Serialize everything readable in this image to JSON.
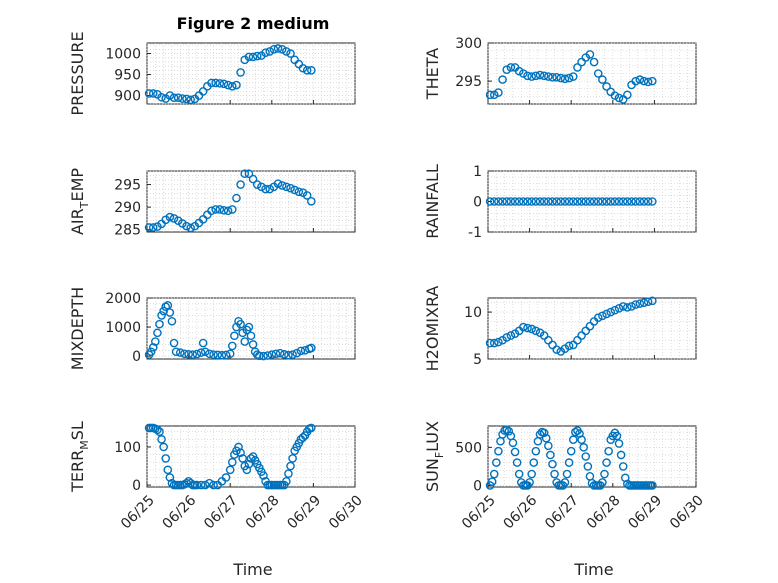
{
  "figure": {
    "title": "Figure 2 medium",
    "marker_color": "#0072BD",
    "x_tick_labels": [
      "06/25",
      "06/26",
      "06/27",
      "06/28",
      "06/29",
      "06/30"
    ],
    "x_label": "Time"
  },
  "chart_data": [
    {
      "type": "scatter",
      "ylabel": "PRESSURE",
      "ylim": [
        880,
        1025
      ],
      "yticks": [
        900,
        950,
        1000
      ],
      "xlim": [
        0,
        5
      ],
      "grid": true,
      "x": [
        0.05,
        0.15,
        0.25,
        0.35,
        0.45,
        0.55,
        0.65,
        0.75,
        0.85,
        0.95,
        1.05,
        1.15,
        1.25,
        1.35,
        1.45,
        1.55,
        1.65,
        1.75,
        1.85,
        1.95,
        2.05,
        2.15,
        2.25,
        2.35,
        2.45,
        2.55,
        2.65,
        2.75,
        2.85,
        2.95,
        3.05,
        3.15,
        3.25,
        3.35,
        3.45,
        3.55,
        3.65,
        3.75,
        3.85,
        3.95
      ],
      "y": [
        905,
        905,
        903,
        896,
        893,
        900,
        895,
        895,
        893,
        892,
        890,
        892,
        900,
        910,
        922,
        930,
        930,
        929,
        928,
        925,
        922,
        925,
        955,
        985,
        992,
        992,
        994,
        995,
        1002,
        1005,
        1010,
        1012,
        1010,
        1005,
        1000,
        985,
        975,
        965,
        960,
        960
      ]
    },
    {
      "type": "scatter",
      "ylabel": "THETA",
      "ylim": [
        292,
        300
      ],
      "yticks": [
        295,
        300
      ],
      "xlim": [
        0,
        5
      ],
      "grid": true,
      "x": [
        0.05,
        0.15,
        0.25,
        0.35,
        0.45,
        0.55,
        0.65,
        0.75,
        0.85,
        0.95,
        1.05,
        1.15,
        1.25,
        1.35,
        1.45,
        1.55,
        1.65,
        1.75,
        1.85,
        1.95,
        2.05,
        2.15,
        2.25,
        2.35,
        2.45,
        2.55,
        2.65,
        2.75,
        2.85,
        2.95,
        3.05,
        3.15,
        3.25,
        3.35,
        3.45,
        3.55,
        3.65,
        3.75,
        3.85,
        3.95
      ],
      "y": [
        293.2,
        293.2,
        293.5,
        295.2,
        296.5,
        296.8,
        296.8,
        296.3,
        296,
        295.7,
        295.6,
        295.7,
        295.8,
        295.7,
        295.6,
        295.5,
        295.5,
        295.4,
        295.3,
        295.4,
        295.6,
        296.8,
        297.5,
        298.1,
        298.5,
        297.5,
        296,
        295.2,
        294.3,
        293.6,
        293.1,
        292.8,
        292.6,
        293.2,
        294.5,
        295,
        295.2,
        295,
        294.9,
        295
      ]
    },
    {
      "type": "scatter",
      "ylabel": "AIR_TEMP",
      "ylim": [
        284.5,
        298
      ],
      "yticks": [
        285,
        290,
        295
      ],
      "xlim": [
        0,
        5
      ],
      "grid": true,
      "x": [
        0.05,
        0.15,
        0.25,
        0.35,
        0.45,
        0.55,
        0.65,
        0.75,
        0.85,
        0.95,
        1.05,
        1.15,
        1.25,
        1.35,
        1.45,
        1.55,
        1.65,
        1.75,
        1.85,
        1.95,
        2.05,
        2.15,
        2.25,
        2.35,
        2.45,
        2.55,
        2.65,
        2.75,
        2.85,
        2.95,
        3.05,
        3.15,
        3.25,
        3.35,
        3.45,
        3.55,
        3.65,
        3.75,
        3.85,
        3.95
      ],
      "y": [
        285.5,
        285.5,
        285.7,
        286.3,
        287.2,
        287.8,
        287.5,
        287,
        286.4,
        285.8,
        285.4,
        285.8,
        286.5,
        287.3,
        288.3,
        289.2,
        289.5,
        289.5,
        289.3,
        289.2,
        289.5,
        292,
        295,
        297.4,
        297.4,
        296.2,
        295,
        294.5,
        294,
        294,
        294.5,
        295.2,
        294.8,
        294.5,
        294.2,
        293.8,
        293.4,
        293.2,
        292.6,
        291.3
      ]
    },
    {
      "type": "scatter",
      "ylabel": "RAINFALL",
      "ylim": [
        -1,
        1
      ],
      "yticks": [
        -1,
        0,
        1
      ],
      "xlim": [
        0,
        5
      ],
      "grid": true,
      "x": [
        0.05,
        0.15,
        0.25,
        0.35,
        0.45,
        0.55,
        0.65,
        0.75,
        0.85,
        0.95,
        1.05,
        1.15,
        1.25,
        1.35,
        1.45,
        1.55,
        1.65,
        1.75,
        1.85,
        1.95,
        2.05,
        2.15,
        2.25,
        2.35,
        2.45,
        2.55,
        2.65,
        2.75,
        2.85,
        2.95,
        3.05,
        3.15,
        3.25,
        3.35,
        3.45,
        3.55,
        3.65,
        3.75,
        3.85,
        3.95
      ],
      "y": [
        0,
        0,
        0,
        0,
        0,
        0,
        0,
        0,
        0,
        0,
        0,
        0,
        0,
        0,
        0,
        0,
        0,
        0,
        0,
        0,
        0,
        0,
        0,
        0,
        0,
        0,
        0,
        0,
        0,
        0,
        0,
        0,
        0,
        0,
        0,
        0,
        0,
        0,
        0,
        0
      ]
    },
    {
      "type": "scatter",
      "ylabel": "MIXDEPTH",
      "ylim": [
        -100,
        2000
      ],
      "yticks": [
        0,
        1000,
        2000
      ],
      "xlim": [
        0,
        5
      ],
      "grid": true,
      "x": [
        0.05,
        0.1,
        0.15,
        0.2,
        0.25,
        0.3,
        0.35,
        0.4,
        0.45,
        0.5,
        0.55,
        0.6,
        0.65,
        0.7,
        0.8,
        0.9,
        1.0,
        1.1,
        1.2,
        1.3,
        1.35,
        1.4,
        1.5,
        1.6,
        1.7,
        1.8,
        1.9,
        2.0,
        2.05,
        2.1,
        2.15,
        2.2,
        2.25,
        2.3,
        2.35,
        2.4,
        2.45,
        2.5,
        2.55,
        2.6,
        2.65,
        2.7,
        2.8,
        2.9,
        3.0,
        3.1,
        3.2,
        3.3,
        3.4,
        3.5,
        3.6,
        3.7,
        3.8,
        3.9,
        3.95
      ],
      "y": [
        50,
        150,
        300,
        500,
        800,
        1100,
        1400,
        1550,
        1700,
        1750,
        1500,
        1200,
        450,
        150,
        120,
        80,
        60,
        50,
        70,
        120,
        450,
        150,
        80,
        50,
        40,
        30,
        40,
        80,
        350,
        700,
        1000,
        1200,
        1100,
        800,
        500,
        900,
        1000,
        700,
        400,
        150,
        50,
        10,
        0,
        20,
        50,
        80,
        100,
        60,
        30,
        50,
        100,
        180,
        200,
        250,
        280
      ]
    },
    {
      "type": "scatter",
      "ylabel": "H2OMIXRA",
      "ylim": [
        5,
        11.5
      ],
      "yticks": [
        5,
        10
      ],
      "xlim": [
        0,
        5
      ],
      "grid": true,
      "x": [
        0.05,
        0.15,
        0.25,
        0.35,
        0.45,
        0.55,
        0.65,
        0.75,
        0.85,
        0.95,
        1.05,
        1.15,
        1.25,
        1.35,
        1.45,
        1.55,
        1.65,
        1.75,
        1.85,
        1.95,
        2.05,
        2.15,
        2.25,
        2.35,
        2.45,
        2.55,
        2.65,
        2.75,
        2.85,
        2.95,
        3.05,
        3.15,
        3.25,
        3.35,
        3.45,
        3.55,
        3.65,
        3.75,
        3.85,
        3.95
      ],
      "y": [
        6.7,
        6.7,
        6.8,
        7.0,
        7.3,
        7.5,
        7.7,
        8.0,
        8.4,
        8.3,
        8.2,
        8.0,
        7.8,
        7.5,
        7.0,
        6.5,
        6.0,
        5.8,
        6.1,
        6.4,
        6.5,
        7.0,
        7.5,
        8.0,
        8.5,
        9.0,
        9.4,
        9.6,
        9.8,
        10.0,
        10.2,
        10.4,
        10.6,
        10.5,
        10.6,
        10.8,
        10.9,
        11.0,
        11.1,
        11.2
      ]
    },
    {
      "type": "scatter",
      "ylabel": "TERR_MSL",
      "ylim": [
        -5,
        155
      ],
      "yticks": [
        0,
        100
      ],
      "xlim": [
        0,
        5
      ],
      "grid": true,
      "x": [
        0.05,
        0.1,
        0.15,
        0.2,
        0.25,
        0.3,
        0.35,
        0.4,
        0.45,
        0.5,
        0.55,
        0.6,
        0.65,
        0.7,
        0.75,
        0.8,
        0.85,
        0.9,
        0.95,
        1.0,
        1.05,
        1.1,
        1.15,
        1.2,
        1.3,
        1.4,
        1.5,
        1.6,
        1.7,
        1.8,
        1.9,
        2.0,
        2.05,
        2.1,
        2.15,
        2.2,
        2.25,
        2.3,
        2.35,
        2.4,
        2.45,
        2.5,
        2.55,
        2.6,
        2.65,
        2.7,
        2.75,
        2.8,
        2.85,
        2.9,
        2.95,
        3.0,
        3.05,
        3.1,
        3.15,
        3.2,
        3.25,
        3.3,
        3.35,
        3.4,
        3.45,
        3.5,
        3.55,
        3.6,
        3.65,
        3.7,
        3.75,
        3.8,
        3.85,
        3.9,
        3.95
      ],
      "y": [
        150,
        150,
        150,
        148,
        145,
        140,
        120,
        100,
        70,
        40,
        20,
        5,
        0,
        0,
        0,
        0,
        0,
        2,
        5,
        10,
        5,
        0,
        0,
        0,
        0,
        0,
        5,
        0,
        0,
        10,
        20,
        40,
        60,
        80,
        90,
        100,
        85,
        70,
        50,
        40,
        55,
        70,
        75,
        65,
        55,
        45,
        35,
        25,
        10,
        0,
        0,
        0,
        0,
        0,
        0,
        0,
        0,
        0,
        10,
        30,
        50,
        70,
        90,
        100,
        110,
        120,
        125,
        130,
        140,
        148,
        150
      ]
    },
    {
      "type": "scatter",
      "ylabel": "SUN_FLUX",
      "ylim": [
        -20,
        780
      ],
      "yticks": [
        0,
        500
      ],
      "xlim": [
        0,
        5
      ],
      "grid": true,
      "x": [
        0.05,
        0.1,
        0.15,
        0.2,
        0.25,
        0.3,
        0.35,
        0.4,
        0.45,
        0.5,
        0.55,
        0.6,
        0.65,
        0.7,
        0.75,
        0.8,
        0.85,
        0.9,
        0.95,
        1.0,
        1.05,
        1.1,
        1.15,
        1.2,
        1.25,
        1.3,
        1.35,
        1.4,
        1.45,
        1.5,
        1.55,
        1.6,
        1.65,
        1.7,
        1.75,
        1.8,
        1.85,
        1.9,
        1.95,
        2.0,
        2.05,
        2.1,
        2.15,
        2.2,
        2.25,
        2.3,
        2.35,
        2.4,
        2.45,
        2.5,
        2.55,
        2.6,
        2.65,
        2.7,
        2.75,
        2.8,
        2.85,
        2.9,
        2.95,
        3.0,
        3.05,
        3.1,
        3.15,
        3.2,
        3.25,
        3.3,
        3.35,
        3.4,
        3.45,
        3.5,
        3.55,
        3.6,
        3.65,
        3.7,
        3.75,
        3.8,
        3.85,
        3.9,
        3.95
      ],
      "y": [
        0,
        50,
        150,
        300,
        450,
        580,
        670,
        720,
        730,
        710,
        650,
        560,
        440,
        300,
        150,
        40,
        0,
        0,
        0,
        40,
        150,
        300,
        450,
        580,
        670,
        700,
        690,
        620,
        520,
        400,
        280,
        150,
        40,
        0,
        0,
        0,
        40,
        150,
        300,
        450,
        600,
        700,
        720,
        680,
        600,
        500,
        380,
        250,
        120,
        30,
        0,
        0,
        0,
        0,
        40,
        150,
        300,
        450,
        600,
        650,
        690,
        650,
        550,
        400,
        250,
        100,
        20,
        0,
        0,
        0,
        0,
        0,
        0,
        0,
        0,
        0,
        0,
        0,
        0
      ]
    }
  ]
}
